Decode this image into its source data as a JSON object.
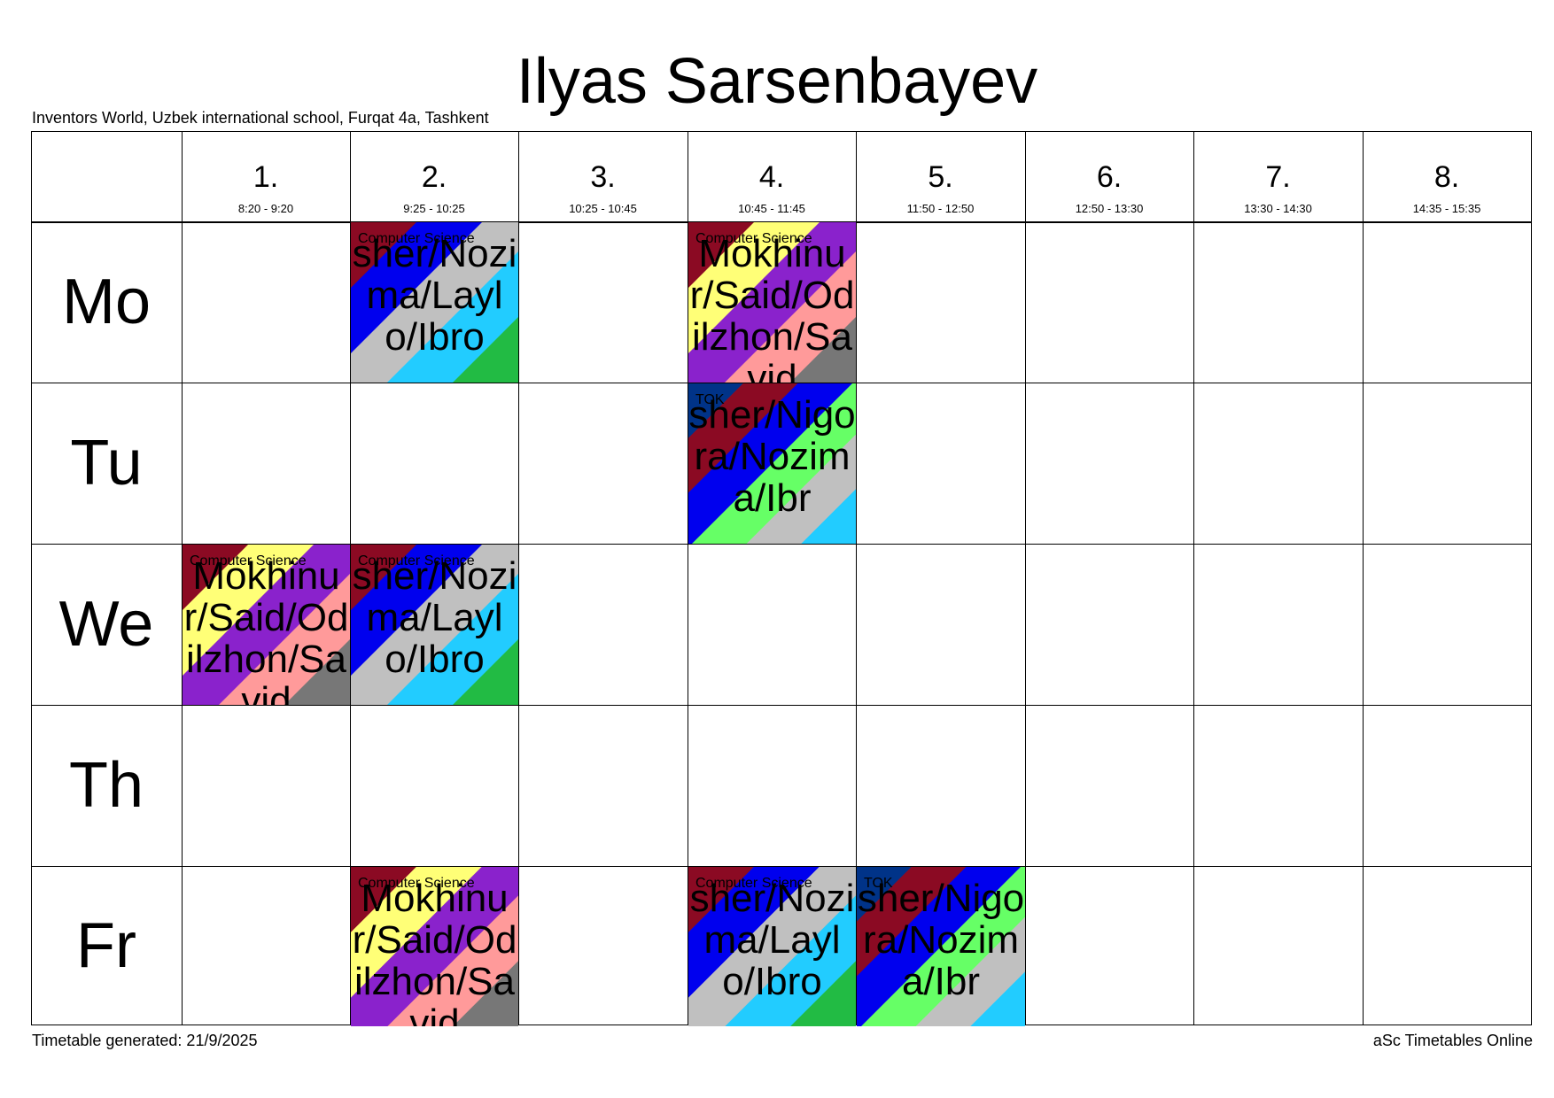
{
  "header": {
    "title": "Ilyas Sarsenbayev",
    "school": "Inventors World, Uzbek international school, Furqat 4a, Tashkent"
  },
  "periods": [
    {
      "num": "1.",
      "time": "8:20 - 9:20"
    },
    {
      "num": "2.",
      "time": "9:25 - 10:25"
    },
    {
      "num": "3.",
      "time": "10:25 - 10:45"
    },
    {
      "num": "4.",
      "time": "10:45 - 11:45"
    },
    {
      "num": "5.",
      "time": "11:50 - 12:50"
    },
    {
      "num": "6.",
      "time": "12:50 - 13:30"
    },
    {
      "num": "7.",
      "time": "13:30 - 14:30"
    },
    {
      "num": "8.",
      "time": "14:35 - 15:35"
    }
  ],
  "days": [
    "Mo",
    "Tu",
    "We",
    "Th",
    "Fr"
  ],
  "lessons": [
    {
      "day": 0,
      "period": 1,
      "subject": "Computer Science",
      "teachers": "sher/Nozima/Laylo/Ibro",
      "colors": [
        "#8b0a23",
        "#0000ee",
        "#c0c0c0",
        "#22ccff",
        "#22bb44"
      ]
    },
    {
      "day": 0,
      "period": 3,
      "subject": "Computer Science",
      "teachers": "Mokhinur/Said/Odilzhon/Savid",
      "colors": [
        "#8b0a23",
        "#ffff77",
        "#8a22cc",
        "#ff9a9a",
        "#777777"
      ]
    },
    {
      "day": 1,
      "period": 3,
      "subject": "TOK",
      "teachers": "sher/Nigora/Nozima/Ibr",
      "colors": [
        "#003388",
        "#8b0a23",
        "#0000ee",
        "#66ff66",
        "#c0c0c0",
        "#22ccff"
      ]
    },
    {
      "day": 2,
      "period": 0,
      "subject": "Computer Science",
      "teachers": "Mokhinur/Said/Odilzhon/Savid",
      "colors": [
        "#8b0a23",
        "#ffff77",
        "#8a22cc",
        "#ff9a9a",
        "#777777"
      ]
    },
    {
      "day": 2,
      "period": 1,
      "subject": "Computer Science",
      "teachers": "sher/Nozima/Laylo/Ibro",
      "colors": [
        "#8b0a23",
        "#0000ee",
        "#c0c0c0",
        "#22ccff",
        "#22bb44"
      ]
    },
    {
      "day": 4,
      "period": 1,
      "subject": "Computer Science",
      "teachers": "Mokhinur/Said/Odilzhon/Savid",
      "colors": [
        "#8b0a23",
        "#ffff77",
        "#8a22cc",
        "#ff9a9a",
        "#777777"
      ]
    },
    {
      "day": 4,
      "period": 3,
      "subject": "Computer Science",
      "teachers": "sher/Nozima/Laylo/Ibro",
      "colors": [
        "#8b0a23",
        "#0000ee",
        "#c0c0c0",
        "#22ccff",
        "#22bb44"
      ]
    },
    {
      "day": 4,
      "period": 4,
      "subject": "TOK",
      "teachers": "sher/Nigora/Nozima/Ibr",
      "colors": [
        "#003388",
        "#8b0a23",
        "#0000ee",
        "#66ff66",
        "#c0c0c0",
        "#22ccff"
      ]
    }
  ],
  "footer": {
    "generated": "Timetable generated: 21/9/2025",
    "brand": "aSc Timetables Online"
  }
}
